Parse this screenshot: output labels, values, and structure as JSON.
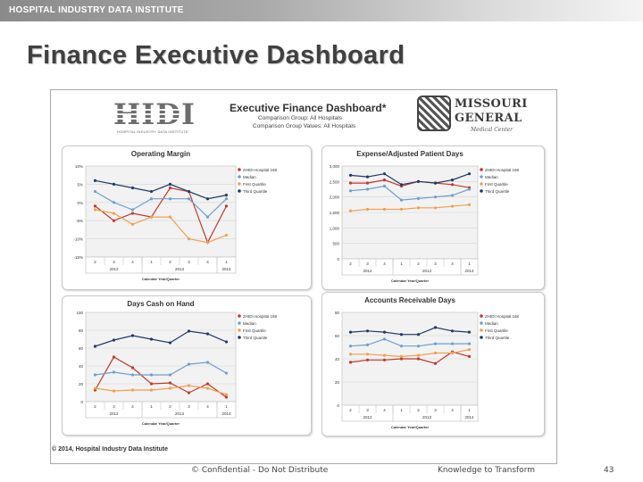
{
  "header": {
    "brand": "HOSPITAL INDUSTRY DATA INSTITUTE"
  },
  "slide": {
    "title": "Finance Executive Dashboard"
  },
  "dashboard": {
    "title": "Executive Finance Dashboard*",
    "comparison_group": "Comparison Group: All Hospitals",
    "comparison_values": "Comparison Group Values: All Hospitals",
    "logo_left": {
      "letters": "HIDI",
      "subtitle": "HOSPITAL INDUSTRY DATA INSTITUTE"
    },
    "logo_right": {
      "line1": "MISSOURI",
      "line2": "GENERAL",
      "line3": "Medical Center"
    },
    "copyright": "© 2014, Hospital Industry Data Institute"
  },
  "footer": {
    "confidential": "© Confidential - Do Not Distribute",
    "tagline": "Knowledge to Transform",
    "page_number": "43"
  },
  "colors": {
    "hospital": "#c0392b",
    "median": "#6f9fcf",
    "first_quartile": "#f0a050",
    "third_quartile": "#1f3a68"
  },
  "chart_data": [
    {
      "type": "line",
      "title": "Operating Margin",
      "xlabel": "Calendar Year/Quarter",
      "ylabel": "",
      "x": [
        "2",
        "3",
        "4",
        "1",
        "2",
        "3",
        "4",
        "1"
      ],
      "year_groups": [
        {
          "label": "2012",
          "span": 3
        },
        {
          "label": "2013",
          "span": 4
        },
        {
          "label": "2014",
          "span": 1
        }
      ],
      "y_ticks": [
        "10%",
        "5%",
        "0%",
        "-5%",
        "-10%",
        "-15%"
      ],
      "ylim": [
        -15,
        10
      ],
      "grid": true,
      "legend_position": "right",
      "series": [
        {
          "name": "ZHIDI Hospital 168",
          "color": "#c0392b",
          "values": [
            -1,
            -5,
            -3,
            -4,
            4,
            3,
            -11,
            -1
          ]
        },
        {
          "name": "Median",
          "color": "#6f9fcf",
          "values": [
            3,
            0,
            -2,
            1,
            1,
            1,
            -4,
            1
          ]
        },
        {
          "name": "First Quartile",
          "color": "#f0a050",
          "values": [
            -2,
            -3,
            -6,
            -4,
            -4,
            -10,
            -11,
            -9
          ]
        },
        {
          "name": "Third Quartile",
          "color": "#1f3a68",
          "values": [
            6,
            5,
            4,
            3,
            5,
            3,
            1,
            2
          ]
        }
      ]
    },
    {
      "type": "line",
      "title": "Expense/Adjusted Patient Days",
      "xlabel": "Calendar Year/Quarter",
      "ylabel": "",
      "x": [
        "2",
        "3",
        "4",
        "1",
        "2",
        "3",
        "4",
        "1"
      ],
      "year_groups": [
        {
          "label": "2012",
          "span": 3
        },
        {
          "label": "2013",
          "span": 4
        },
        {
          "label": "2014",
          "span": 1
        }
      ],
      "y_ticks": [
        "3,000",
        "2,500",
        "2,000",
        "1,500",
        "1,000",
        "500",
        "0"
      ],
      "ylim": [
        0,
        3000
      ],
      "grid": true,
      "legend_position": "right",
      "series": [
        {
          "name": "ZHIDI Hospital 168",
          "color": "#c0392b",
          "values": [
            2450,
            2450,
            2550,
            2350,
            2500,
            2450,
            2400,
            2300
          ]
        },
        {
          "name": "Median",
          "color": "#6f9fcf",
          "values": [
            2200,
            2250,
            2350,
            1900,
            1950,
            2000,
            2050,
            2250
          ]
        },
        {
          "name": "First Quartile",
          "color": "#f0a050",
          "values": [
            1550,
            1600,
            1600,
            1600,
            1650,
            1650,
            1700,
            1750
          ]
        },
        {
          "name": "Third Quartile",
          "color": "#1f3a68",
          "values": [
            2700,
            2650,
            2750,
            2400,
            2500,
            2450,
            2550,
            2750
          ]
        }
      ]
    },
    {
      "type": "line",
      "title": "Days Cash on Hand",
      "xlabel": "Calendar Year/Quarter",
      "ylabel": "",
      "x": [
        "2",
        "3",
        "4",
        "1",
        "2",
        "3",
        "4",
        "1"
      ],
      "year_groups": [
        {
          "label": "2012",
          "span": 3
        },
        {
          "label": "2013",
          "span": 4
        },
        {
          "label": "2014",
          "span": 1
        }
      ],
      "y_ticks": [
        "100",
        "80",
        "60",
        "40",
        "20",
        "0"
      ],
      "ylim": [
        0,
        100
      ],
      "grid": true,
      "legend_position": "right",
      "series": [
        {
          "name": "ZHIDI Hospital 168",
          "color": "#c0392b",
          "values": [
            13,
            50,
            38,
            20,
            21,
            10,
            20,
            5
          ]
        },
        {
          "name": "Median",
          "color": "#6f9fcf",
          "values": [
            30,
            33,
            30,
            30,
            30,
            42,
            44,
            32
          ]
        },
        {
          "name": "First Quartile",
          "color": "#f0a050",
          "values": [
            15,
            12,
            13,
            13,
            15,
            18,
            15,
            8
          ]
        },
        {
          "name": "Third Quartile",
          "color": "#1f3a68",
          "values": [
            62,
            69,
            74,
            70,
            66,
            79,
            76,
            67
          ]
        }
      ]
    },
    {
      "type": "line",
      "title": "Accounts Receivable Days",
      "xlabel": "Calendar Year/Quarter",
      "ylabel": "",
      "x": [
        "2",
        "3",
        "4",
        "1",
        "2",
        "3",
        "4",
        "1"
      ],
      "year_groups": [
        {
          "label": "2012",
          "span": 3
        },
        {
          "label": "2013",
          "span": 4
        },
        {
          "label": "2014",
          "span": 1
        }
      ],
      "y_ticks": [
        "80",
        "60",
        "40",
        "20",
        "0"
      ],
      "ylim": [
        0,
        80
      ],
      "grid": true,
      "legend_position": "right",
      "series": [
        {
          "name": "ZHIDI Hospital 168",
          "color": "#c0392b",
          "values": [
            37,
            39,
            39,
            40,
            40,
            36,
            46,
            42
          ]
        },
        {
          "name": "Median",
          "color": "#6f9fcf",
          "values": [
            51,
            52,
            57,
            51,
            51,
            53,
            53,
            53
          ]
        },
        {
          "name": "First Quartile",
          "color": "#f0a050",
          "values": [
            44,
            44,
            43,
            42,
            43,
            45,
            45,
            48
          ]
        },
        {
          "name": "Third Quartile",
          "color": "#1f3a68",
          "values": [
            63,
            64,
            63,
            61,
            61,
            67,
            64,
            63
          ]
        }
      ]
    }
  ]
}
